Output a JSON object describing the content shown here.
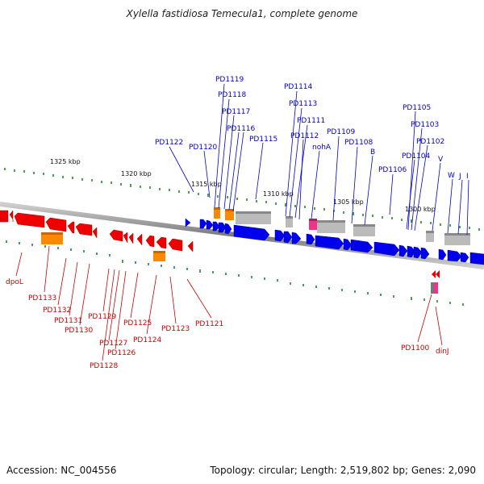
{
  "title": "Xylella fastidiosa Temecula1, complete genome",
  "footer": {
    "accession": "Accession: NC_004556",
    "summary": "Topology: circular; Length: 2,519,802 bp; Genes: 2,090"
  },
  "ruler": {
    "labels": [
      "1325 kbp",
      "1320 kbp",
      "1315 kbp",
      "1310 kbp",
      "1305 kbp",
      "1300 kbp"
    ]
  },
  "colors": {
    "forward": "#0000ee",
    "reverse": "#ee0000",
    "rna_orange": "#ff8800",
    "pseudo_gray": "#bbbbbb",
    "misc_pink": "#ee3388",
    "tick": "#228822"
  },
  "genes_top": [
    "PD1119",
    "PD1118",
    "PD1117",
    "PD1116",
    "PD1114",
    "PD1113",
    "PD1111",
    "PD1112",
    "nohA",
    "PD1109",
    "PD1108",
    "B",
    "PD1105",
    "PD1103",
    "PD1102",
    "PD1104",
    "V",
    "W",
    "J",
    "I",
    "PD1122",
    "PD1120",
    "PD1115",
    "PD1106"
  ],
  "genes_bottom": [
    "dpoL",
    "PD1133",
    "PD1132",
    "PD1131",
    "PD1130",
    "PD1129",
    "PD1127",
    "PD1126",
    "PD1128",
    "PD1125",
    "PD1124",
    "PD1123",
    "PD1121",
    "PD1100",
    "dinJ"
  ]
}
